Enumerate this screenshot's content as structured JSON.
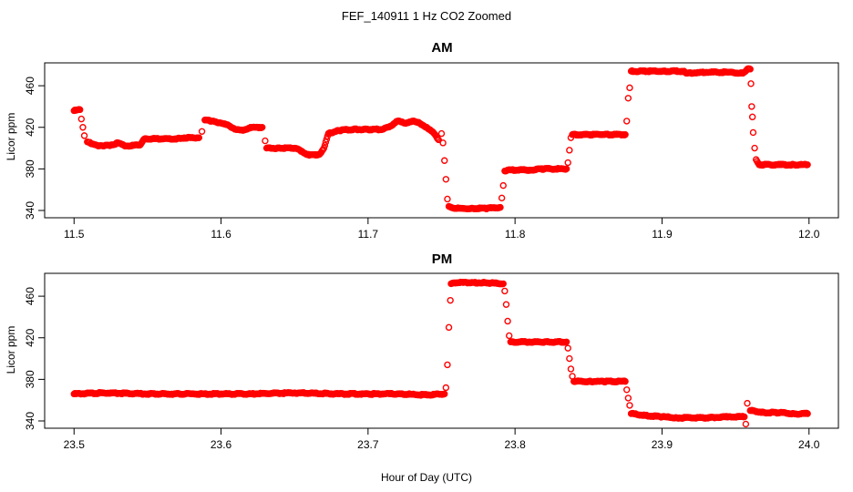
{
  "figure": {
    "title": "FEF_140911  1 Hz CO2 Zoomed",
    "xlabel": "Hour of Day (UTC)"
  },
  "chart_data": [
    {
      "type": "scatter",
      "title": "AM",
      "ylabel": "Licor ppm",
      "xlim": [
        11.48,
        12.02
      ],
      "ylim": [
        333,
        482
      ],
      "x_ticks": [
        11.5,
        11.6,
        11.7,
        11.8,
        11.9,
        12.0
      ],
      "x_tick_labels": [
        "11.5",
        "11.6",
        "11.7",
        "11.8",
        "11.9",
        "12.0"
      ],
      "y_ticks": [
        340,
        380,
        420,
        460
      ],
      "y_tick_labels": [
        "340",
        "380",
        "420",
        "460"
      ],
      "marker_color": "#ff0000",
      "series": [
        {
          "points": [
            [
              11.5,
              436
            ],
            [
              11.504,
              437
            ],
            [
              11.505,
              428
            ],
            [
              11.506,
              420
            ],
            [
              11.507,
              412
            ],
            [
              11.509,
              406
            ],
            [
              11.515,
              403
            ],
            [
              11.52,
              402
            ],
            [
              11.525,
              403
            ],
            [
              11.53,
              405
            ],
            [
              11.535,
              402
            ],
            [
              11.545,
              403
            ],
            [
              11.548,
              409
            ],
            [
              11.56,
              409
            ],
            [
              11.57,
              409
            ],
            [
              11.575,
              410
            ],
            [
              11.585,
              410
            ],
            [
              11.587,
              416
            ],
            [
              11.589,
              427
            ],
            [
              11.595,
              426
            ],
            [
              11.6,
              424
            ],
            [
              11.605,
              422
            ],
            [
              11.61,
              418
            ],
            [
              11.615,
              417
            ],
            [
              11.62,
              420
            ],
            [
              11.628,
              420
            ],
            [
              11.63,
              407
            ],
            [
              11.631,
              400
            ],
            [
              11.64,
              400
            ],
            [
              11.65,
              400
            ],
            [
              11.655,
              397
            ],
            [
              11.66,
              393
            ],
            [
              11.667,
              394
            ],
            [
              11.67,
              400
            ],
            [
              11.673,
              414
            ],
            [
              11.68,
              417
            ],
            [
              11.69,
              418
            ],
            [
              11.7,
              418
            ],
            [
              11.71,
              418
            ],
            [
              11.715,
              421
            ],
            [
              11.72,
              426
            ],
            [
              11.725,
              424
            ],
            [
              11.73,
              426
            ],
            [
              11.735,
              424
            ],
            [
              11.74,
              420
            ],
            [
              11.745,
              414
            ],
            [
              11.748,
              408
            ],
            [
              11.75,
              414
            ],
            [
              11.751,
              405
            ],
            [
              11.752,
              388
            ],
            [
              11.753,
              370
            ],
            [
              11.754,
              351
            ],
            [
              11.755,
              344
            ],
            [
              11.76,
              342
            ],
            [
              11.77,
              342
            ],
            [
              11.78,
              342
            ],
            [
              11.79,
              343
            ],
            [
              11.791,
              352
            ],
            [
              11.792,
              364
            ],
            [
              11.793,
              378
            ],
            [
              11.795,
              379
            ],
            [
              11.81,
              379
            ],
            [
              11.82,
              380
            ],
            [
              11.835,
              380
            ],
            [
              11.836,
              386
            ],
            [
              11.837,
              398
            ],
            [
              11.838,
              410
            ],
            [
              11.839,
              413
            ],
            [
              11.85,
              413
            ],
            [
              11.86,
              413
            ],
            [
              11.875,
              413
            ],
            [
              11.876,
              426
            ],
            [
              11.877,
              448
            ],
            [
              11.878,
              458
            ],
            [
              11.879,
              474
            ],
            [
              11.89,
              474
            ],
            [
              11.9,
              474
            ],
            [
              11.915,
              474
            ],
            [
              11.917,
              472
            ],
            [
              11.93,
              473
            ],
            [
              11.945,
              473
            ],
            [
              11.955,
              472
            ],
            [
              11.958,
              476
            ],
            [
              11.96,
              476
            ],
            [
              11.9605,
              462
            ],
            [
              11.961,
              440
            ],
            [
              11.9615,
              430
            ],
            [
              11.962,
              415
            ],
            [
              11.963,
              400
            ],
            [
              11.964,
              389
            ],
            [
              11.966,
              384
            ],
            [
              11.98,
              384
            ],
            [
              11.99,
              384
            ],
            [
              11.999,
              384
            ]
          ]
        }
      ]
    },
    {
      "type": "scatter",
      "title": "PM",
      "ylabel": "Licor ppm",
      "xlim": [
        23.48,
        24.02
      ],
      "ylim": [
        333,
        482
      ],
      "x_ticks": [
        23.5,
        23.6,
        23.7,
        23.8,
        23.9,
        24.0
      ],
      "x_tick_labels": [
        "23.5",
        "23.6",
        "23.7",
        "23.8",
        "23.9",
        "24.0"
      ],
      "y_ticks": [
        340,
        380,
        420,
        460
      ],
      "y_tick_labels": [
        "340",
        "380",
        "420",
        "460"
      ],
      "marker_color": "#ff0000",
      "series": [
        {
          "points": [
            [
              23.5,
              366
            ],
            [
              23.52,
              367
            ],
            [
              23.55,
              366
            ],
            [
              23.58,
              366
            ],
            [
              23.6,
              366
            ],
            [
              23.62,
              366
            ],
            [
              23.65,
              367
            ],
            [
              23.68,
              366
            ],
            [
              23.7,
              366
            ],
            [
              23.72,
              366
            ],
            [
              23.74,
              365
            ],
            [
              23.752,
              366
            ],
            [
              23.753,
              372
            ],
            [
              23.754,
              394
            ],
            [
              23.755,
              430
            ],
            [
              23.756,
              456
            ],
            [
              23.7565,
              472
            ],
            [
              23.76,
              473
            ],
            [
              23.77,
              473
            ],
            [
              23.78,
              473
            ],
            [
              23.792,
              472
            ],
            [
              23.793,
              465
            ],
            [
              23.794,
              452
            ],
            [
              23.795,
              436
            ],
            [
              23.796,
              422
            ],
            [
              23.797,
              416
            ],
            [
              23.81,
              416
            ],
            [
              23.82,
              416
            ],
            [
              23.835,
              416
            ],
            [
              23.836,
              410
            ],
            [
              23.837,
              400
            ],
            [
              23.838,
              390
            ],
            [
              23.839,
              383
            ],
            [
              23.84,
              378
            ],
            [
              23.85,
              378
            ],
            [
              23.86,
              378
            ],
            [
              23.875,
              378
            ],
            [
              23.876,
              370
            ],
            [
              23.877,
              362
            ],
            [
              23.878,
              355
            ],
            [
              23.879,
              347
            ],
            [
              23.89,
              345
            ],
            [
              23.9,
              344
            ],
            [
              23.91,
              343
            ],
            [
              23.93,
              343
            ],
            [
              23.945,
              344
            ],
            [
              23.956,
              344
            ],
            [
              23.957,
              337
            ],
            [
              23.958,
              357
            ],
            [
              23.96,
              350
            ],
            [
              23.97,
              348
            ],
            [
              23.98,
              348
            ],
            [
              23.99,
              347
            ],
            [
              23.999,
              347
            ]
          ]
        }
      ]
    }
  ]
}
